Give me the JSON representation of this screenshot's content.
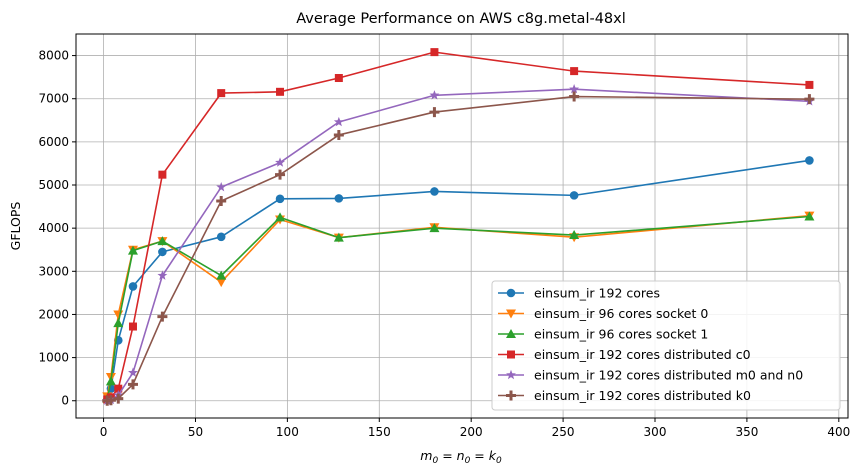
{
  "chart_data": {
    "type": "line",
    "title": "Average Performance on AWS c8g.metal-48xl",
    "xlabel_prefix": "m",
    "xlabel_sub": "0",
    "xlabel_rest": " = n",
    "xlabel_sub2": "0",
    "xlabel_rest2": " = k",
    "xlabel_sub3": "0",
    "ylabel": "GFLOPS",
    "xlim": [
      -15,
      405
    ],
    "ylim": [
      -400,
      8500
    ],
    "xticks": [
      0,
      50,
      100,
      150,
      200,
      250,
      300,
      350,
      400
    ],
    "yticks": [
      0,
      1000,
      2000,
      3000,
      4000,
      5000,
      6000,
      7000,
      8000
    ],
    "grid": true,
    "legend_position": "lower-right",
    "x": [
      2,
      4,
      8,
      16,
      32,
      64,
      96,
      128,
      180,
      256,
      384
    ],
    "series": [
      {
        "name": "einsum_ir 192 cores",
        "color": "#1f77b4",
        "marker": "circle",
        "values": [
          20,
          280,
          1400,
          2650,
          3450,
          3800,
          4680,
          4690,
          4850,
          4760,
          5570
        ]
      },
      {
        "name": "einsum_ir 96 cores socket 0",
        "color": "#ff7f0e",
        "marker": "triangle-down",
        "values": [
          100,
          550,
          2000,
          3500,
          3700,
          2750,
          4200,
          3780,
          4020,
          3790,
          4290
        ]
      },
      {
        "name": "einsum_ir 96 cores socket 1",
        "color": "#2ca02c",
        "marker": "triangle-up",
        "values": [
          50,
          450,
          1800,
          3480,
          3700,
          2900,
          4250,
          3780,
          4000,
          3840,
          4270
        ]
      },
      {
        "name": "einsum_ir 192 cores distributed c0",
        "color": "#d62728",
        "marker": "square",
        "values": [
          30,
          80,
          280,
          1720,
          5240,
          7130,
          7160,
          7480,
          8080,
          7640,
          7320
        ]
      },
      {
        "name": "einsum_ir 192 cores distributed m0 and n0",
        "color": "#9467bd",
        "marker": "star",
        "values": [
          0,
          20,
          130,
          650,
          2900,
          4950,
          5520,
          6460,
          7080,
          7220,
          6940
        ]
      },
      {
        "name": "einsum_ir 192 cores distributed k0",
        "color": "#8c564b",
        "marker": "plus",
        "values": [
          0,
          10,
          50,
          380,
          1950,
          4630,
          5240,
          6160,
          6690,
          7050,
          6990
        ]
      }
    ]
  }
}
